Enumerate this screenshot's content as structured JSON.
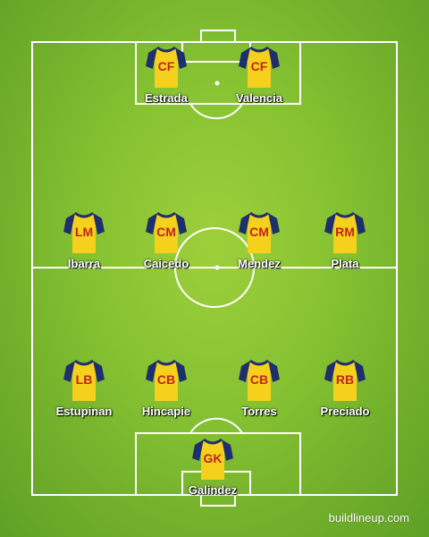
{
  "kit": {
    "shirt_color": "#f5d11e",
    "sleeve_color": "#1e2f6e",
    "number_color": "#c0241c"
  },
  "pitch": {
    "grass_color": "#86c232",
    "line_color": "#ffffff"
  },
  "players": [
    {
      "position": "CF",
      "name": "Estrada"
    },
    {
      "position": "CF",
      "name": "Valencia"
    },
    {
      "position": "LM",
      "name": "Ibarra"
    },
    {
      "position": "CM",
      "name": "Caicedo"
    },
    {
      "position": "CM",
      "name": "Mendez"
    },
    {
      "position": "RM",
      "name": "Plata"
    },
    {
      "position": "LB",
      "name": "Estupinan"
    },
    {
      "position": "CB",
      "name": "Hincapie"
    },
    {
      "position": "CB",
      "name": "Torres"
    },
    {
      "position": "RB",
      "name": "Preciado"
    },
    {
      "position": "GK",
      "name": "Galindez"
    }
  ],
  "watermark": "buildlineup.com"
}
